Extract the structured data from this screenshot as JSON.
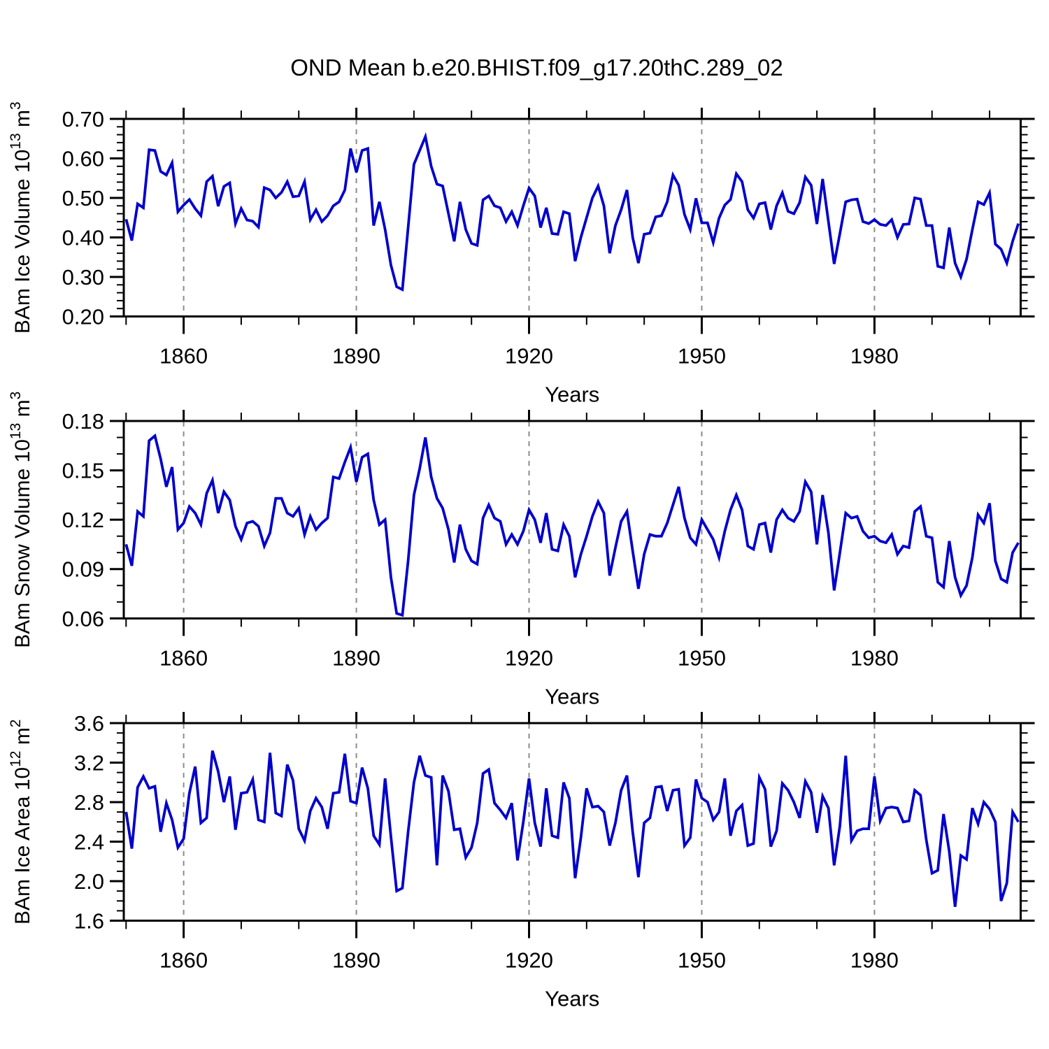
{
  "title": "OND Mean b.e20.BHIST.f09_g17.20thC.289_02",
  "colors": {
    "line": "#0000CC",
    "grid": "#8c8c8c",
    "axis": "#000000",
    "background": "#ffffff",
    "text": "#000000"
  },
  "x_axis": {
    "label": "Years",
    "range": [
      1849.6,
      2005.4
    ],
    "major_ticks": [
      1860,
      1890,
      1920,
      1950,
      1980
    ],
    "major_tick_labels": [
      "1860",
      "1890",
      "1920",
      "1950",
      "1980"
    ],
    "minor_tick_step": 10,
    "grid_dashed_at_major": true
  },
  "chart_data": [
    {
      "type": "line",
      "panel": "ice-volume",
      "ylabel": {
        "pre": "BAm Ice Volume 10",
        "sup1": "13",
        "mid": " m",
        "sup2": "3"
      },
      "xlabel": "Years",
      "ylim": [
        0.2,
        0.7
      ],
      "ytick_major_values": [
        0.7,
        0.6,
        0.5,
        0.4,
        0.3,
        0.2
      ],
      "ytick_major_labels": [
        "0.70",
        "0.60",
        "0.50",
        "0.40",
        "0.30",
        "0.20"
      ],
      "ytick_minor_step": 0.02,
      "x_start": 1850,
      "x_step": 1,
      "values": [
        0.446,
        0.392,
        0.485,
        0.475,
        0.622,
        0.62,
        0.567,
        0.558,
        0.589,
        0.465,
        0.482,
        0.496,
        0.473,
        0.455,
        0.541,
        0.555,
        0.479,
        0.529,
        0.538,
        0.435,
        0.473,
        0.444,
        0.441,
        0.426,
        0.526,
        0.52,
        0.5,
        0.514,
        0.541,
        0.503,
        0.505,
        0.541,
        0.445,
        0.47,
        0.44,
        0.455,
        0.48,
        0.49,
        0.52,
        0.625,
        0.565,
        0.62,
        0.625,
        0.43,
        0.49,
        0.42,
        0.33,
        0.275,
        0.268,
        0.425,
        0.585,
        0.62,
        0.655,
        0.58,
        0.535,
        0.53,
        0.46,
        0.39,
        0.49,
        0.42,
        0.385,
        0.38,
        0.495,
        0.505,
        0.48,
        0.475,
        0.44,
        0.465,
        0.43,
        0.48,
        0.525,
        0.505,
        0.425,
        0.475,
        0.41,
        0.408,
        0.465,
        0.46,
        0.34,
        0.4,
        0.45,
        0.5,
        0.53,
        0.48,
        0.36,
        0.43,
        0.47,
        0.52,
        0.4,
        0.335,
        0.408,
        0.411,
        0.452,
        0.455,
        0.49,
        0.558,
        0.532,
        0.458,
        0.42,
        0.499,
        0.437,
        0.437,
        0.387,
        0.449,
        0.482,
        0.496,
        0.561,
        0.541,
        0.47,
        0.449,
        0.485,
        0.488,
        0.42,
        0.48,
        0.513,
        0.466,
        0.46,
        0.488,
        0.553,
        0.532,
        0.434,
        0.548,
        0.44,
        0.333,
        0.41,
        0.49,
        0.495,
        0.497,
        0.44,
        0.435,
        0.445,
        0.433,
        0.43,
        0.445,
        0.4,
        0.433,
        0.434,
        0.5,
        0.497,
        0.43,
        0.43,
        0.327,
        0.323,
        0.425,
        0.335,
        0.3,
        0.345,
        0.42,
        0.49,
        0.483,
        0.513,
        0.383,
        0.37,
        0.335,
        0.39,
        0.435
      ]
    },
    {
      "type": "line",
      "panel": "snow-volume",
      "ylabel": {
        "pre": "BAm Snow Volume 10",
        "sup1": "13",
        "mid": " m",
        "sup2": "3"
      },
      "xlabel": "Years",
      "ylim": [
        0.06,
        0.18
      ],
      "ytick_major_values": [
        0.18,
        0.15,
        0.12,
        0.09,
        0.06
      ],
      "ytick_major_labels": [
        "0.18",
        "0.15",
        "0.12",
        "0.09",
        "0.06"
      ],
      "ytick_minor_step": 0.01,
      "x_start": 1850,
      "x_step": 1,
      "values": [
        0.105,
        0.092,
        0.125,
        0.122,
        0.168,
        0.171,
        0.157,
        0.14,
        0.152,
        0.114,
        0.118,
        0.128,
        0.124,
        0.117,
        0.136,
        0.144,
        0.124,
        0.137,
        0.132,
        0.116,
        0.108,
        0.118,
        0.119,
        0.116,
        0.104,
        0.112,
        0.133,
        0.133,
        0.124,
        0.122,
        0.127,
        0.111,
        0.122,
        0.114,
        0.118,
        0.121,
        0.146,
        0.145,
        0.155,
        0.164,
        0.143,
        0.158,
        0.16,
        0.132,
        0.117,
        0.12,
        0.085,
        0.063,
        0.062,
        0.095,
        0.135,
        0.151,
        0.17,
        0.146,
        0.133,
        0.127,
        0.114,
        0.094,
        0.117,
        0.102,
        0.095,
        0.093,
        0.121,
        0.129,
        0.121,
        0.119,
        0.105,
        0.111,
        0.105,
        0.113,
        0.126,
        0.12,
        0.106,
        0.124,
        0.102,
        0.101,
        0.117,
        0.11,
        0.085,
        0.099,
        0.11,
        0.122,
        0.131,
        0.124,
        0.086,
        0.103,
        0.119,
        0.125,
        0.101,
        0.078,
        0.099,
        0.111,
        0.11,
        0.11,
        0.118,
        0.129,
        0.14,
        0.121,
        0.109,
        0.105,
        0.12,
        0.114,
        0.108,
        0.097,
        0.113,
        0.126,
        0.135,
        0.126,
        0.104,
        0.102,
        0.117,
        0.118,
        0.1,
        0.12,
        0.126,
        0.121,
        0.119,
        0.125,
        0.143,
        0.137,
        0.105,
        0.135,
        0.112,
        0.077,
        0.1,
        0.124,
        0.121,
        0.122,
        0.113,
        0.109,
        0.11,
        0.107,
        0.106,
        0.111,
        0.099,
        0.104,
        0.103,
        0.125,
        0.128,
        0.11,
        0.109,
        0.082,
        0.079,
        0.107,
        0.085,
        0.074,
        0.08,
        0.097,
        0.123,
        0.118,
        0.13,
        0.095,
        0.084,
        0.082,
        0.1,
        0.106
      ]
    },
    {
      "type": "line",
      "panel": "ice-area",
      "ylabel": {
        "pre": "BAm Ice Area 10",
        "sup1": "12",
        "mid": " m",
        "sup2": "2"
      },
      "xlabel": "Years",
      "ylim": [
        1.6,
        3.6
      ],
      "ytick_major_values": [
        3.6,
        3.2,
        2.8,
        2.4,
        2.0,
        1.6
      ],
      "ytick_major_labels": [
        "3.6",
        "3.2",
        "2.8",
        "2.4",
        "2.0",
        "1.6"
      ],
      "ytick_minor_step": 0.1,
      "x_start": 1850,
      "x_step": 1,
      "values": [
        2.7,
        2.33,
        2.95,
        3.06,
        2.94,
        2.96,
        2.5,
        2.79,
        2.62,
        2.34,
        2.43,
        2.89,
        3.16,
        2.59,
        2.64,
        3.32,
        3.11,
        2.8,
        3.06,
        2.52,
        2.89,
        2.9,
        3.03,
        2.62,
        2.6,
        3.3,
        2.69,
        2.66,
        3.18,
        3.02,
        2.53,
        2.41,
        2.71,
        2.84,
        2.75,
        2.53,
        2.89,
        2.9,
        3.29,
        2.81,
        2.79,
        3.15,
        2.94,
        2.46,
        2.37,
        3.04,
        2.45,
        1.9,
        1.93,
        2.5,
        3.0,
        3.27,
        3.07,
        3.05,
        2.16,
        3.07,
        2.91,
        2.52,
        2.53,
        2.24,
        2.34,
        2.59,
        3.09,
        3.13,
        2.79,
        2.72,
        2.64,
        2.79,
        2.21,
        2.6,
        3.04,
        2.59,
        2.35,
        2.94,
        2.46,
        2.44,
        3.0,
        2.84,
        2.03,
        2.44,
        2.94,
        2.75,
        2.76,
        2.7,
        2.36,
        2.59,
        2.92,
        3.07,
        2.5,
        2.04,
        2.59,
        2.64,
        2.95,
        2.96,
        2.71,
        2.92,
        2.93,
        2.36,
        2.44,
        3.03,
        2.84,
        2.8,
        2.62,
        2.7,
        3.04,
        2.46,
        2.71,
        2.77,
        2.36,
        2.38,
        3.05,
        2.93,
        2.35,
        2.51,
        2.99,
        2.92,
        2.8,
        2.64,
        3.01,
        2.9,
        2.49,
        2.86,
        2.74,
        2.16,
        2.56,
        3.27,
        2.41,
        2.51,
        2.53,
        2.53,
        3.06,
        2.61,
        2.74,
        2.75,
        2.74,
        2.6,
        2.61,
        2.92,
        2.87,
        2.42,
        2.08,
        2.11,
        2.68,
        2.3,
        1.74,
        2.26,
        2.22,
        2.74,
        2.58,
        2.8,
        2.73,
        2.6,
        1.8,
        1.98,
        2.7,
        2.6
      ]
    }
  ]
}
